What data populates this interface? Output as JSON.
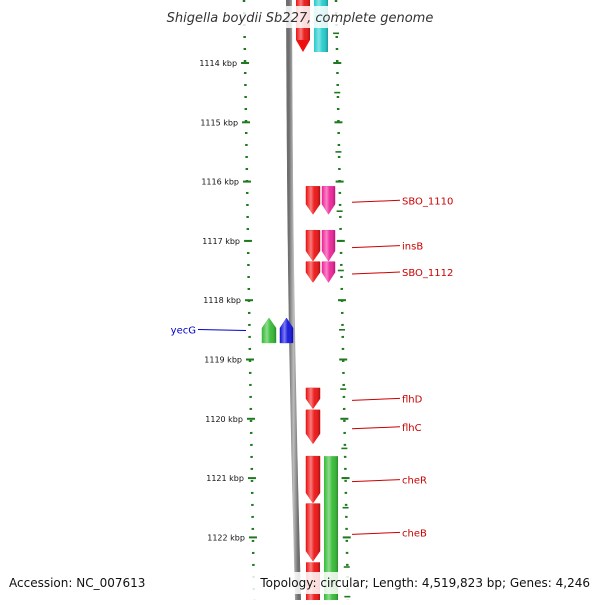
{
  "title": "Shigella boydii Sb227, complete genome",
  "accession_text": "Accession: NC_007613",
  "topology_text": "Topology: circular; Length: 4,519,823 bp; Genes: 4,246",
  "ruler": {
    "unit": "kbp",
    "ticks": [
      {
        "kbp": 1114,
        "label": "1114 kbp"
      },
      {
        "kbp": 1115,
        "label": "1115 kbp"
      },
      {
        "kbp": 1116,
        "label": "1116 kbp"
      },
      {
        "kbp": 1117,
        "label": "1117 kbp"
      },
      {
        "kbp": 1118,
        "label": "1118 kbp"
      },
      {
        "kbp": 1119,
        "label": "1119 kbp"
      },
      {
        "kbp": 1120,
        "label": "1120 kbp"
      },
      {
        "kbp": 1121,
        "label": "1121 kbp"
      },
      {
        "kbp": 1122,
        "label": "1122 kbp"
      }
    ]
  },
  "colors": {
    "background": "#ffffff",
    "backbone": "#8c8c8c",
    "ruler": "#1f7a1f",
    "cds_red": "#ee1111",
    "cds_pink": "#ee2299",
    "cds_cyan": "#22cccc",
    "cds_green": "#33bb33",
    "cds_blue": "#1111dd",
    "label_red": "#cc0000",
    "label_blue": "#0000cc"
  },
  "features": [
    {
      "name": "SBO_1110",
      "start_kbp": 1116.08,
      "end_kbp": 1116.55,
      "strand": "+",
      "lane": "forward",
      "color": "cds_red",
      "label_color": "label_red",
      "label_side": "right"
    },
    {
      "name": "SBO_1110 (mobile element)",
      "start_kbp": 1116.08,
      "end_kbp": 1116.55,
      "strand": "+",
      "lane": "mobile",
      "color": "cds_pink",
      "show_label": false
    },
    {
      "name": "insB",
      "start_kbp": 1116.82,
      "end_kbp": 1117.34,
      "strand": "+",
      "lane": "forward",
      "color": "cds_red",
      "label_color": "label_red",
      "label_side": "right"
    },
    {
      "name": "insB (mobile element)",
      "start_kbp": 1116.82,
      "end_kbp": 1117.34,
      "strand": "+",
      "lane": "mobile",
      "color": "cds_pink",
      "show_label": false
    },
    {
      "name": "SBO_1112",
      "start_kbp": 1117.35,
      "end_kbp": 1117.7,
      "strand": "+",
      "lane": "forward",
      "color": "cds_red",
      "label_color": "label_red",
      "label_side": "right"
    },
    {
      "name": "SBO_1112 (mobile element)",
      "start_kbp": 1117.35,
      "end_kbp": 1117.7,
      "strand": "+",
      "lane": "mobile",
      "color": "cds_pink",
      "show_label": false
    },
    {
      "name": "yecG",
      "start_kbp": 1118.3,
      "end_kbp": 1118.72,
      "strand": "-",
      "lane": "reverse",
      "color": "cds_blue",
      "label_color": "label_blue",
      "label_side": "left"
    },
    {
      "name": "yecG (region)",
      "start_kbp": 1118.3,
      "end_kbp": 1118.72,
      "strand": "-",
      "lane": "reverse_outer",
      "color": "cds_green",
      "show_label": false
    },
    {
      "name": "flhD",
      "start_kbp": 1119.48,
      "end_kbp": 1119.83,
      "strand": "+",
      "lane": "forward",
      "color": "cds_red",
      "label_color": "label_red",
      "label_side": "right"
    },
    {
      "name": "flhC",
      "start_kbp": 1119.85,
      "end_kbp": 1120.42,
      "strand": "+",
      "lane": "forward",
      "color": "cds_red",
      "label_color": "label_red",
      "label_side": "right"
    },
    {
      "name": "cheR",
      "start_kbp": 1120.63,
      "end_kbp": 1121.42,
      "strand": "+",
      "lane": "forward",
      "color": "cds_red",
      "label_color": "label_red",
      "label_side": "right"
    },
    {
      "name": "cheB",
      "start_kbp": 1121.43,
      "end_kbp": 1122.4,
      "strand": "+",
      "lane": "forward",
      "color": "cds_red",
      "label_color": "label_red",
      "label_side": "right"
    }
  ]
}
